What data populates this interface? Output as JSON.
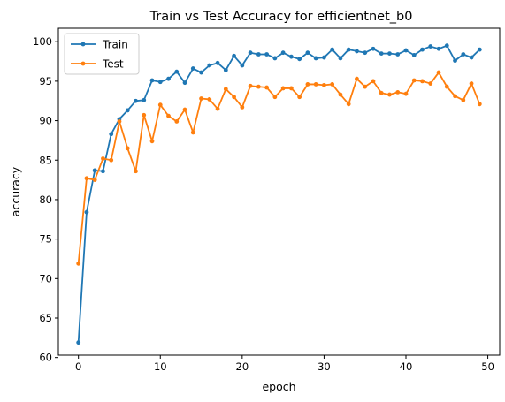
{
  "chart_data": {
    "type": "line",
    "title": "Train vs Test Accuracy for efficientnet_b0",
    "xlabel": "epoch",
    "ylabel": "accuracy",
    "xlim": [
      -2.45,
      51.45
    ],
    "ylim": [
      60.3,
      101.7
    ],
    "xticks": [
      0,
      10,
      20,
      30,
      40,
      50
    ],
    "yticks": [
      60,
      65,
      70,
      75,
      80,
      85,
      90,
      95,
      100
    ],
    "grid": false,
    "legend_position": "top-left",
    "x": [
      0,
      1,
      2,
      3,
      4,
      5,
      6,
      7,
      8,
      9,
      10,
      11,
      12,
      13,
      14,
      15,
      16,
      17,
      18,
      19,
      20,
      21,
      22,
      23,
      24,
      25,
      26,
      27,
      28,
      29,
      30,
      31,
      32,
      33,
      34,
      35,
      36,
      37,
      38,
      39,
      40,
      41,
      42,
      43,
      44,
      45,
      46,
      47,
      48,
      49
    ],
    "series": [
      {
        "name": "Train",
        "color": "#1f77b4",
        "values": [
          61.9,
          78.4,
          83.7,
          83.6,
          88.3,
          90.2,
          91.3,
          92.5,
          92.6,
          95.1,
          94.9,
          95.3,
          96.2,
          94.8,
          96.6,
          96.1,
          97.0,
          97.3,
          96.4,
          98.2,
          97.0,
          98.6,
          98.4,
          98.4,
          97.9,
          98.6,
          98.1,
          97.8,
          98.6,
          97.9,
          98.0,
          99.0,
          97.9,
          99.0,
          98.8,
          98.6,
          99.1,
          98.5,
          98.5,
          98.4,
          98.9,
          98.3,
          99.0,
          99.4,
          99.1,
          99.5,
          97.6,
          98.4,
          98.0,
          99.0
        ]
      },
      {
        "name": "Test",
        "color": "#ff7f0e",
        "values": [
          71.9,
          82.7,
          82.5,
          85.2,
          85.0,
          89.9,
          86.5,
          83.6,
          90.7,
          87.4,
          92.0,
          90.6,
          89.9,
          91.4,
          88.5,
          92.8,
          92.7,
          91.5,
          94.0,
          93.0,
          91.7,
          94.4,
          94.3,
          94.2,
          93.0,
          94.1,
          94.1,
          93.0,
          94.6,
          94.6,
          94.5,
          94.6,
          93.3,
          92.1,
          95.3,
          94.3,
          95.0,
          93.5,
          93.3,
          93.6,
          93.4,
          95.1,
          95.0,
          94.7,
          96.1,
          94.3,
          93.1,
          92.6,
          94.7,
          92.1
        ]
      }
    ]
  }
}
